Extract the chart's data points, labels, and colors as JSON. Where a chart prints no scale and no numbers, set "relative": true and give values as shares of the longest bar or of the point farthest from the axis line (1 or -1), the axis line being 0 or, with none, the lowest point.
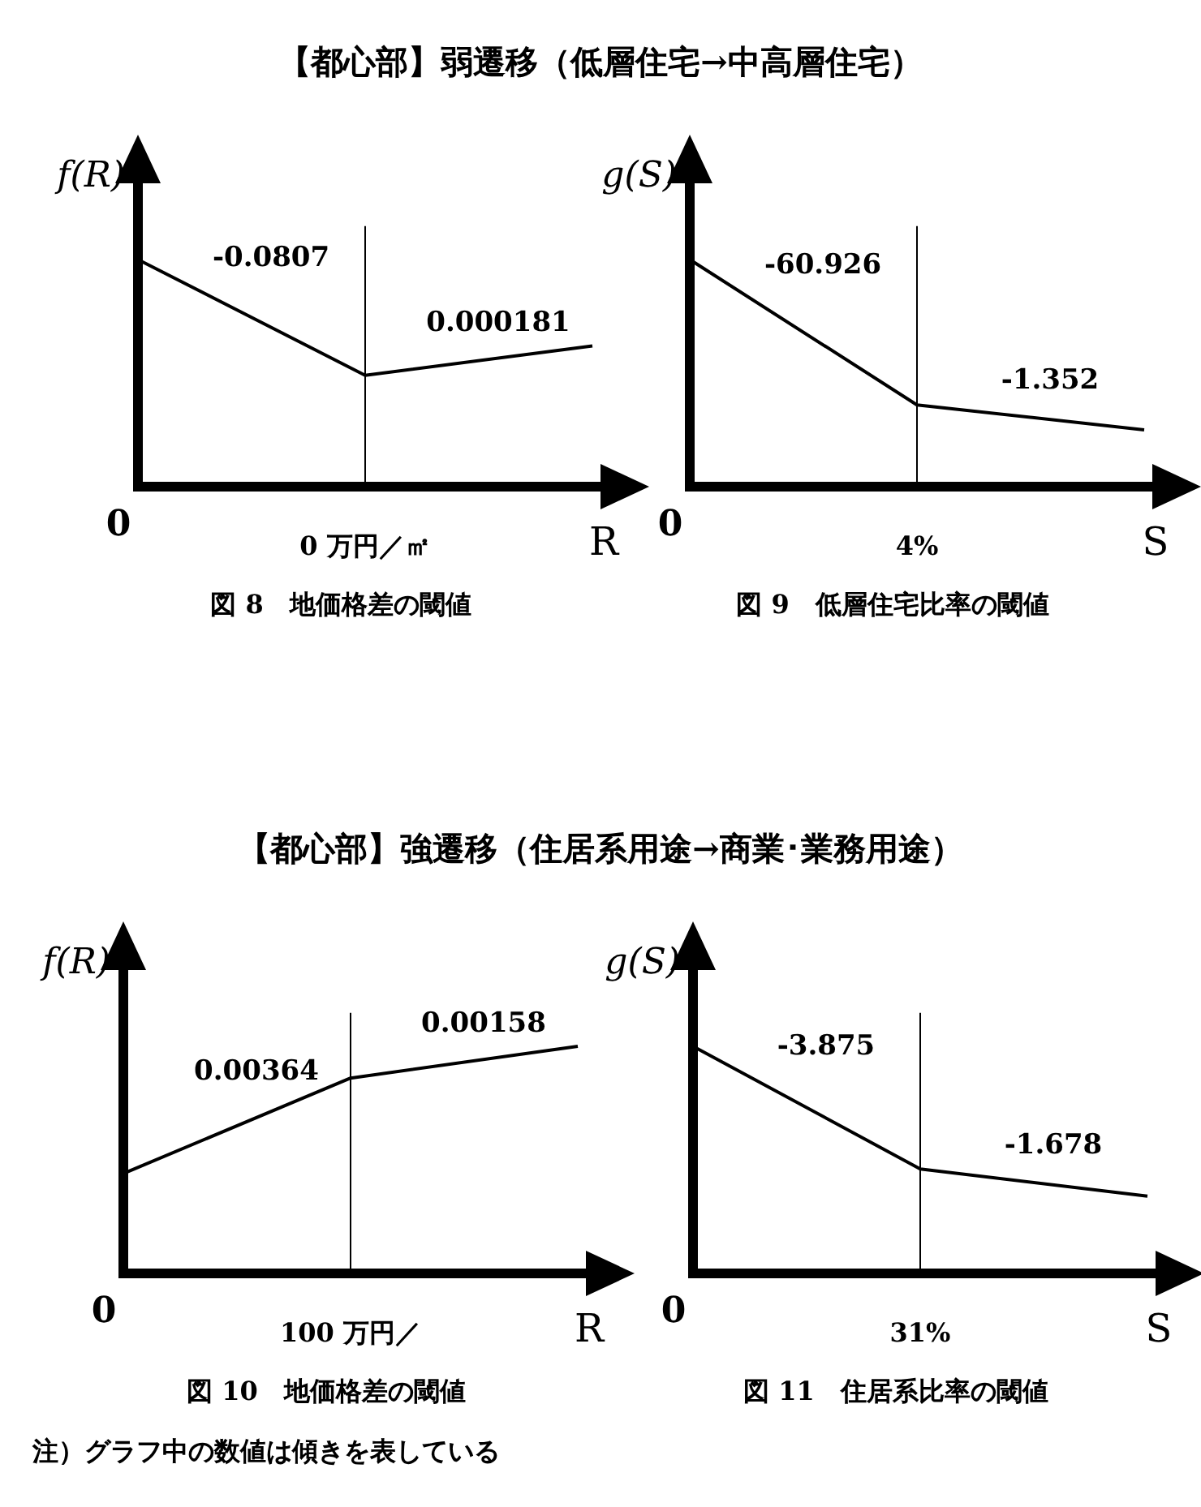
{
  "chart_data": [
    {
      "type": "line",
      "relative": true,
      "title": "【都心部】弱遷移（低層住宅→中高層住宅）",
      "subtitle": "図 8　地価格差の閾値",
      "xlabel": "R",
      "ylabel": "f(R)",
      "categories": [
        "0",
        "0 万円／㎡",
        null
      ],
      "series": [
        {
          "color": "#000000",
          "values": [
            1,
            0.49,
            0.62
          ]
        }
      ],
      "ref_lines": [
        {
          "axis": "x",
          "value": "0 万円／㎡"
        }
      ],
      "annotations": [
        "-0.0807",
        "0.000181"
      ]
    },
    {
      "type": "line",
      "relative": true,
      "subtitle": "図 9　低層住宅比率の閾値",
      "xlabel": "S",
      "ylabel": "g(S)",
      "categories": [
        "0",
        "4%",
        null
      ],
      "series": [
        {
          "color": "#000000",
          "values": [
            1,
            0.36,
            0.25
          ]
        }
      ],
      "ref_lines": [
        {
          "axis": "x",
          "value": "4%"
        }
      ],
      "annotations": [
        "-60.926",
        "-1.352"
      ]
    },
    {
      "type": "line",
      "relative": true,
      "title": "【都心部】強遷移（住居系用途→商業･業務用途）",
      "subtitle": "図 10　地価格差の閾値",
      "xlabel": "R",
      "ylabel": "f(R)",
      "categories": [
        "0",
        "100 万円／",
        null
      ],
      "series": [
        {
          "color": "#000000",
          "values": [
            0.44,
            0.86,
            1
          ]
        }
      ],
      "ref_lines": [
        {
          "axis": "x",
          "value": "100 万円／"
        }
      ],
      "annotations": [
        "0.00364",
        "0.00158"
      ]
    },
    {
      "type": "line",
      "relative": true,
      "subtitle": "図 11　住居系比率の閾値",
      "xlabel": "S",
      "ylabel": "g(S)",
      "categories": [
        "0",
        "31%",
        null
      ],
      "series": [
        {
          "color": "#000000",
          "values": [
            1,
            0.46,
            0.34
          ]
        }
      ],
      "ref_lines": [
        {
          "axis": "x",
          "value": "31%"
        }
      ],
      "annotations": [
        "-3.875",
        "-1.678",
        "注）グラフ中の数値は傾きを表している"
      ]
    }
  ]
}
